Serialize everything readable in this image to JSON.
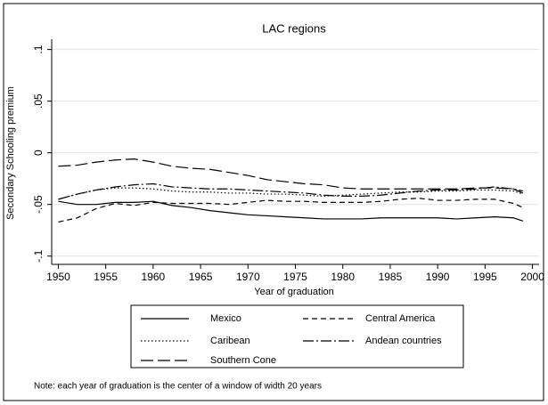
{
  "chart_data": {
    "type": "line",
    "title": "LAC regions",
    "x_label": "Year of graduation",
    "y_label": "Secondary Schooling premium",
    "note": "Note: each year of graduation is the center of a window of width 20 years",
    "x": [
      1950,
      1952,
      1954,
      1956,
      1958,
      1960,
      1962,
      1964,
      1966,
      1968,
      1970,
      1972,
      1974,
      1976,
      1978,
      1980,
      1982,
      1984,
      1986,
      1988,
      1990,
      1992,
      1994,
      1996,
      1998,
      1999
    ],
    "series": [
      {
        "name": "Mexico",
        "color": "#000000",
        "style": "solid",
        "values": [
          -0.047,
          -0.05,
          -0.05,
          -0.048,
          -0.048,
          -0.047,
          -0.051,
          -0.053,
          -0.056,
          -0.058,
          -0.06,
          -0.061,
          -0.062,
          -0.063,
          -0.064,
          -0.064,
          -0.064,
          -0.063,
          -0.063,
          -0.063,
          -0.063,
          -0.064,
          -0.063,
          -0.062,
          -0.063,
          -0.066
        ]
      },
      {
        "name": "Central America",
        "color": "#000000",
        "style": "short-dash",
        "values": [
          -0.067,
          -0.063,
          -0.054,
          -0.049,
          -0.051,
          -0.048,
          -0.049,
          -0.049,
          -0.049,
          -0.05,
          -0.048,
          -0.046,
          -0.047,
          -0.047,
          -0.048,
          -0.048,
          -0.048,
          -0.047,
          -0.045,
          -0.044,
          -0.046,
          -0.046,
          -0.045,
          -0.045,
          -0.049,
          -0.053
        ]
      },
      {
        "name": "Caribean",
        "color": "#000000",
        "style": "dot",
        "values": [
          -0.045,
          -0.04,
          -0.036,
          -0.034,
          -0.034,
          -0.035,
          -0.037,
          -0.038,
          -0.038,
          -0.039,
          -0.039,
          -0.04,
          -0.04,
          -0.041,
          -0.042,
          -0.041,
          -0.04,
          -0.039,
          -0.038,
          -0.038,
          -0.037,
          -0.037,
          -0.036,
          -0.036,
          -0.037,
          -0.04
        ]
      },
      {
        "name": "Andean countries",
        "color": "#000000",
        "style": "dash-dot",
        "values": [
          -0.045,
          -0.04,
          -0.036,
          -0.033,
          -0.031,
          -0.03,
          -0.033,
          -0.034,
          -0.035,
          -0.035,
          -0.036,
          -0.037,
          -0.038,
          -0.039,
          -0.041,
          -0.042,
          -0.042,
          -0.041,
          -0.039,
          -0.037,
          -0.036,
          -0.036,
          -0.035,
          -0.033,
          -0.035,
          -0.037
        ]
      },
      {
        "name": "Southern Cone",
        "color": "#000000",
        "style": "long-dash",
        "values": [
          -0.013,
          -0.012,
          -0.009,
          -0.007,
          -0.006,
          -0.009,
          -0.013,
          -0.015,
          -0.016,
          -0.019,
          -0.022,
          -0.026,
          -0.028,
          -0.03,
          -0.031,
          -0.034,
          -0.035,
          -0.035,
          -0.035,
          -0.035,
          -0.035,
          -0.035,
          -0.034,
          -0.034,
          -0.035,
          -0.039
        ]
      }
    ],
    "xlim": [
      1949.3,
      2000.7
    ],
    "xticks": [
      1950,
      1955,
      1960,
      1965,
      1970,
      1975,
      1980,
      1985,
      1990,
      1995,
      2000
    ],
    "ylim": [
      -0.108,
      0.11
    ],
    "yticks": [
      {
        "value": -0.1,
        "label": "-.1"
      },
      {
        "value": -0.05,
        "label": "-.05"
      },
      0,
      {
        "value": 0.05,
        "label": ".05"
      },
      {
        "value": 0.1,
        "label": ".1"
      }
    ],
    "grid": true,
    "legend_position": "bottom"
  }
}
